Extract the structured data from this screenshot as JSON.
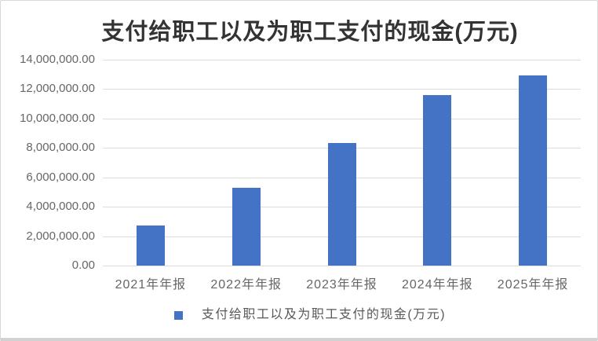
{
  "chart_data": {
    "type": "bar",
    "title": "支付给职工以及为职工支付的现金(万元)",
    "categories": [
      "2021年年报",
      "2022年年报",
      "2023年年报",
      "2024年年报",
      "2025年年报"
    ],
    "series": [
      {
        "name": "支付给职工以及为职工支付的现金(万元)",
        "values": [
          2750000,
          5300000,
          8350000,
          11600000,
          12950000
        ]
      }
    ],
    "legend": {
      "label": "支付给职工以及为职工支付的现金(万元)",
      "position": "bottom"
    },
    "y_axis": {
      "min": 0,
      "max": 14000000,
      "tick_step": 2000000,
      "tick_labels_top_to_bottom": [
        "14,000,000.00",
        "12,000,000.00",
        "10,000,000.00",
        "8,000,000.00",
        "6,000,000.00",
        "4,000,000.00",
        "2,000,000.00",
        "0.00"
      ]
    },
    "grid": true,
    "colors": {
      "bar": "#4472C4",
      "gridline": "#DCDCDC",
      "axis_text": "#666666",
      "title_text": "#333333",
      "window_border": "#D9D9D9",
      "window_bottom_edge": "#D2D2D2"
    }
  }
}
